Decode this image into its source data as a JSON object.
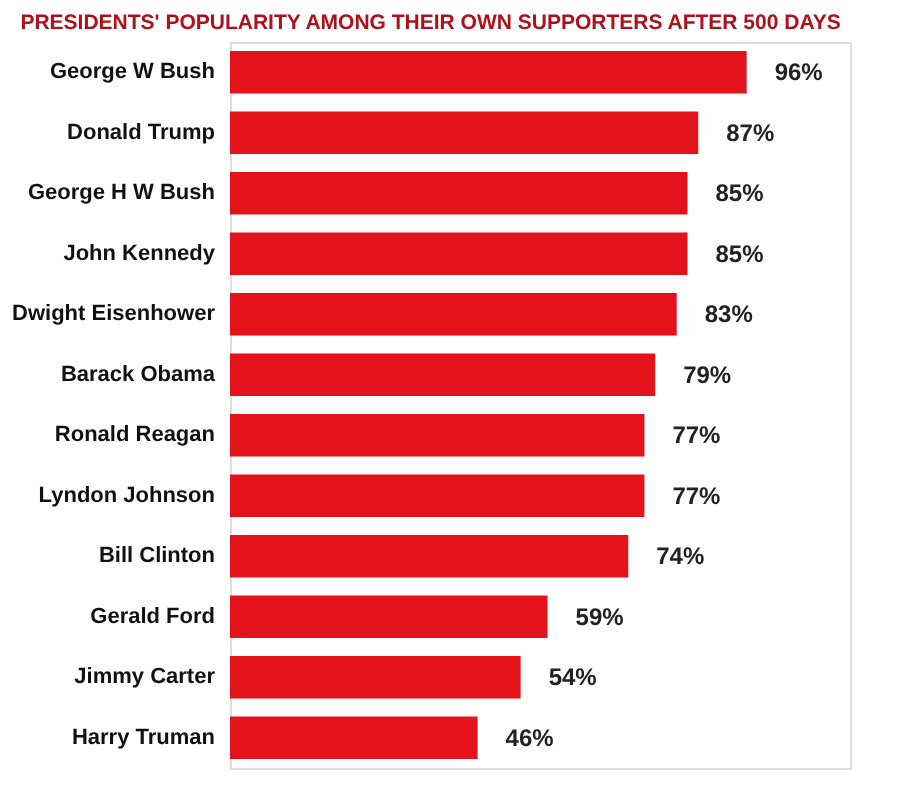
{
  "chart_data": {
    "type": "bar",
    "orientation": "horizontal",
    "title": "PRESIDENTS' POPULARITY AMONG THEIR OWN SUPPORTERS AFTER 500 DAYS",
    "categories": [
      "George W Bush",
      "Donald Trump",
      "George H W Bush",
      "John Kennedy",
      "Dwight Eisenhower",
      "Barack Obama",
      "Ronald Reagan",
      "Lyndon Johnson",
      "Bill Clinton",
      "Gerald Ford",
      "Jimmy Carter",
      "Harry Truman"
    ],
    "values": [
      96,
      87,
      85,
      85,
      83,
      79,
      77,
      77,
      74,
      59,
      54,
      46
    ],
    "value_labels": [
      "96%",
      "87%",
      "85%",
      "85%",
      "83%",
      "79%",
      "77%",
      "77%",
      "74%",
      "59%",
      "54%",
      "46%"
    ],
    "color": "#e3121b"
  }
}
